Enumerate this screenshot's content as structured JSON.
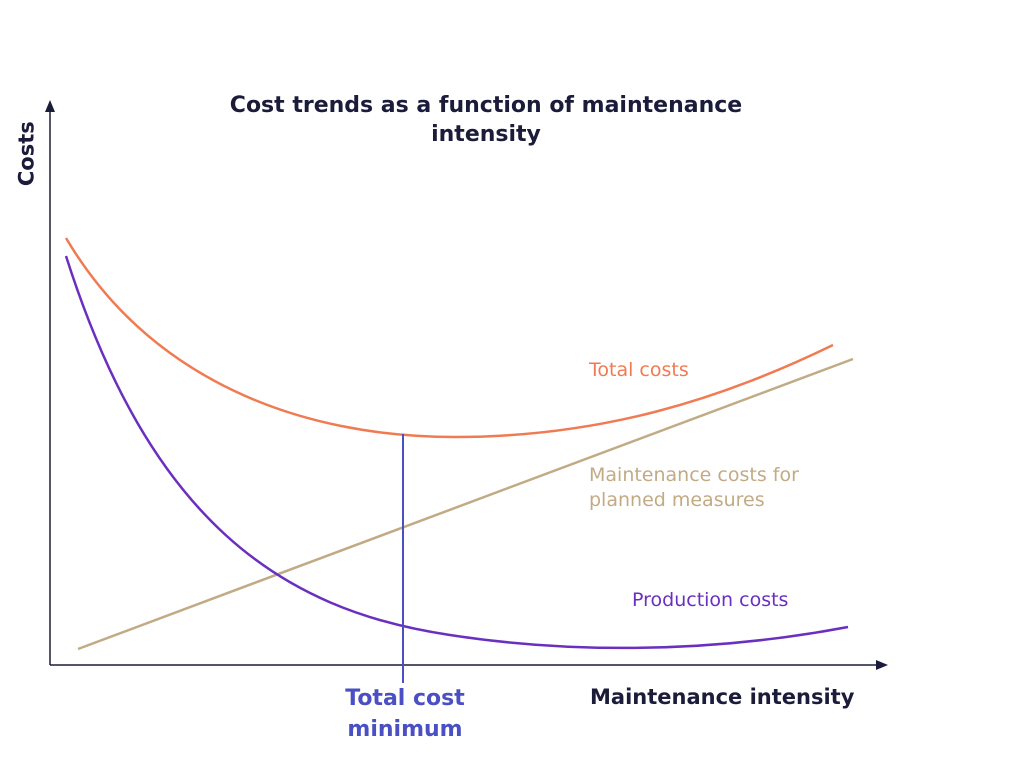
{
  "title": "Cost trends as a function of maintenance intensity",
  "y_axis_label": "Costs",
  "x_axis_label": "Maintenance intensity",
  "curves": {
    "total": "Total costs",
    "maintenance": "Maintenance costs for planned measures",
    "production": "Production costs"
  },
  "annotation": "Total cost minimum"
}
